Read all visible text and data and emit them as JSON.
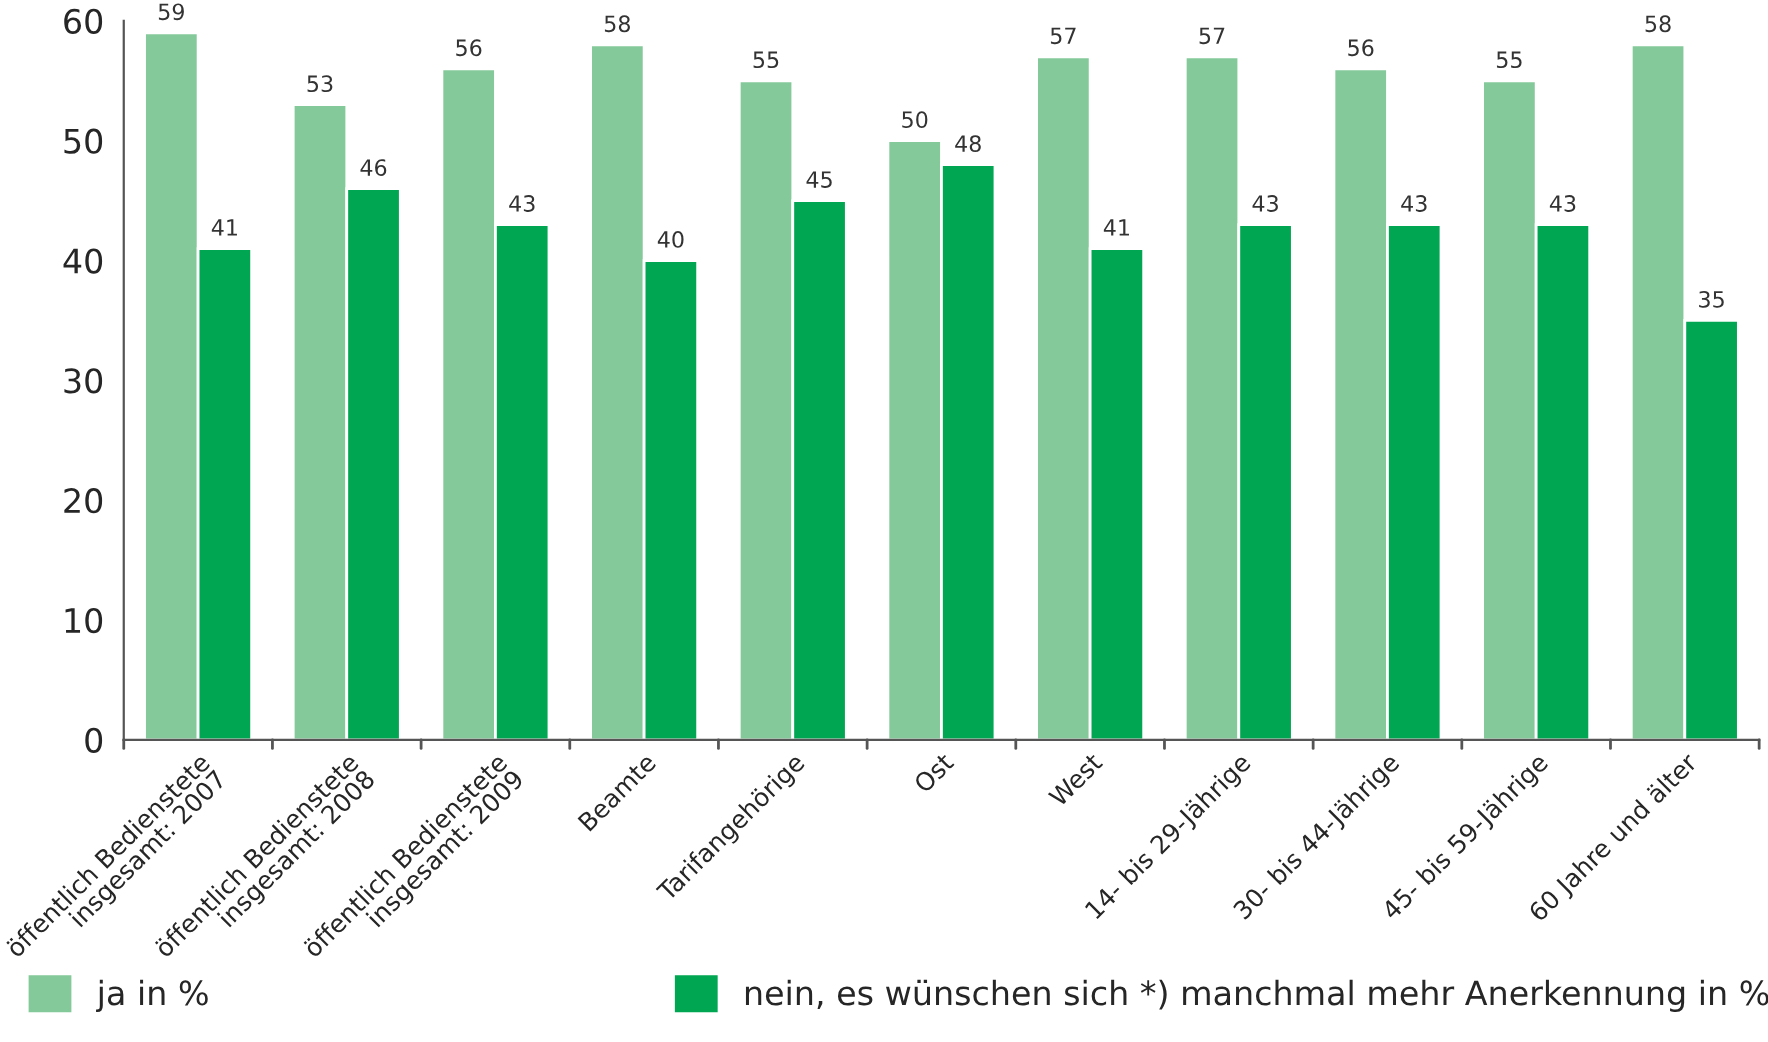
{
  "chart_data": {
    "type": "bar",
    "categories": [
      "öffentlich Bedienstete\ninsgesamt: 2007",
      "öffentlich Bedienstete\ninsgesamt: 2008",
      "öffentlich Bedienstete\ninsgesamt: 2009",
      "Beamte",
      "Tarifangehörige",
      "Ost",
      "West",
      "14- bis 29-Jährige",
      "30- bis 44-Jährige",
      "45- bis 59-Jährige",
      "60 Jahre und älter"
    ],
    "series": [
      {
        "name": "ja in %",
        "color": "#84c99a",
        "values": [
          59,
          53,
          56,
          58,
          55,
          50,
          57,
          57,
          56,
          55,
          58
        ]
      },
      {
        "name": "nein, es wünschen sich *) manchmal mehr Anerkennung in %",
        "color": "#00a651",
        "values": [
          41,
          46,
          43,
          40,
          45,
          48,
          41,
          43,
          43,
          43,
          35
        ]
      }
    ],
    "ylim": [
      0,
      60
    ],
    "yticks": [
      0,
      10,
      20,
      30,
      40,
      50,
      60
    ],
    "data_labels": true,
    "grid": false,
    "legend": "bottom"
  }
}
